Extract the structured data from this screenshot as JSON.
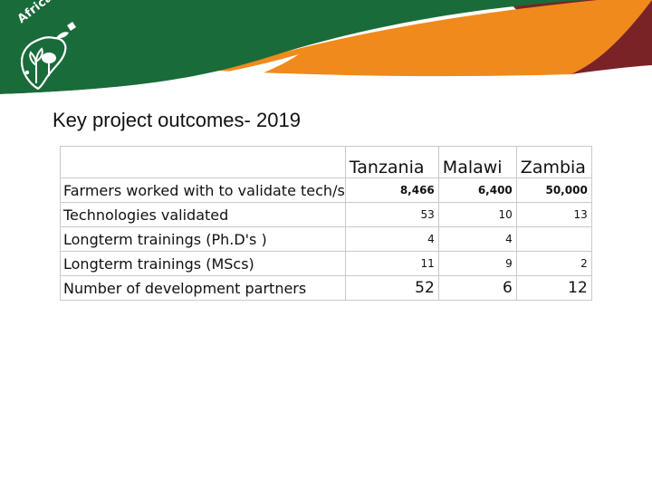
{
  "banner": {
    "colors": {
      "green": "#1a6b3a",
      "orange": "#f08a1c",
      "maroon": "#7a2326"
    }
  },
  "logo": {
    "text": "Africa RISING",
    "icon": "africa-map-with-plants-icon"
  },
  "slide": {
    "title": "Key project outcomes- 2019"
  },
  "table": {
    "headers": [
      "",
      "Tanzania",
      "Malawi",
      "Zambia"
    ],
    "rows": [
      {
        "label": "Farmers worked with to validate tech/s",
        "values": [
          "8,466",
          "6,400",
          "50,000"
        ]
      },
      {
        "label": "Technologies validated",
        "values": [
          "53",
          "10",
          "13"
        ]
      },
      {
        "label": "Longterm trainings (Ph.D's )",
        "values": [
          "4",
          "4",
          ""
        ]
      },
      {
        "label": "Longterm trainings (MScs)",
        "values": [
          "11",
          "9",
          "2"
        ]
      },
      {
        "label": "Number of development partners",
        "values": [
          "52",
          "6",
          "12"
        ]
      }
    ]
  }
}
